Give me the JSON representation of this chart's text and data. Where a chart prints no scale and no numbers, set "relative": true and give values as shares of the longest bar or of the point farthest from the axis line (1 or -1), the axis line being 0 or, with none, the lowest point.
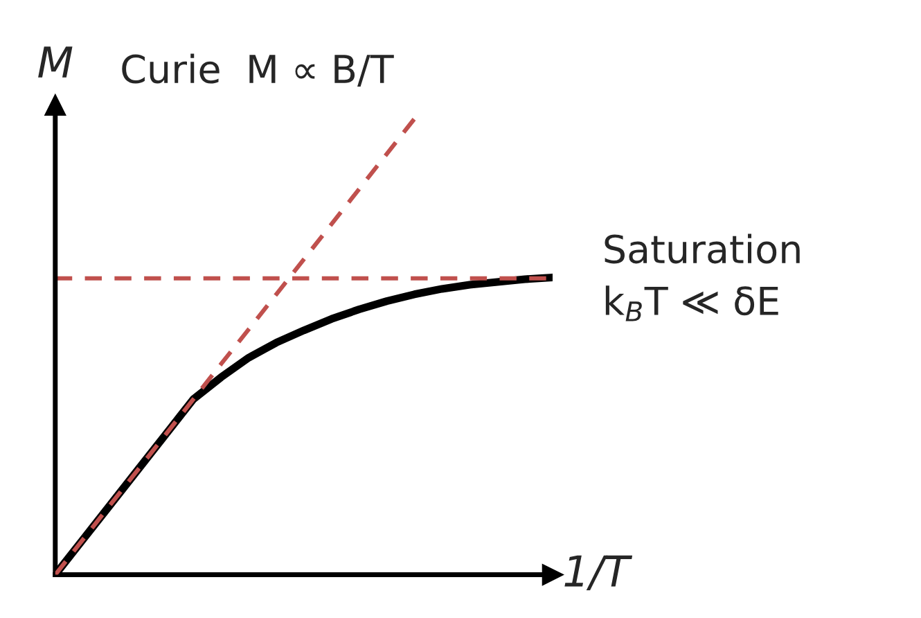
{
  "chart_data": {
    "type": "line",
    "relative": true,
    "xlabel": "1/T",
    "ylabel": "M",
    "categories": [
      null,
      null,
      null,
      null,
      null,
      null,
      null,
      null,
      null,
      null,
      null,
      null,
      null,
      null,
      null,
      null,
      null,
      null,
      null
    ],
    "series": [
      {
        "color": "#c0504d",
        "line_style": "dashed",
        "values": [
          0,
          0.077,
          0.154,
          0.231,
          0.308,
          0.385,
          0.462,
          0.538,
          0.615,
          0.692,
          0.769,
          0.846,
          0.923,
          1.0,
          null,
          null,
          null,
          null,
          null
        ]
      },
      {
        "color": "#000000",
        "line_style": "solid",
        "values": [
          0,
          0.077,
          0.154,
          0.231,
          0.308,
          0.385,
          0.433,
          0.476,
          0.509,
          0.536,
          0.561,
          0.582,
          0.6,
          0.615,
          0.627,
          0.636,
          0.642,
          0.648,
          0.652
        ]
      }
    ],
    "ref_lines": [
      {
        "axis": "y",
        "value": 0.65,
        "label": "Saturation\nk$_{B}$T ≪ δE",
        "color": "#c0504d",
        "line_style": "dashed"
      }
    ],
    "annotations": [
      "Curie  M ∝ B/T"
    ],
    "tick_labels": false
  }
}
